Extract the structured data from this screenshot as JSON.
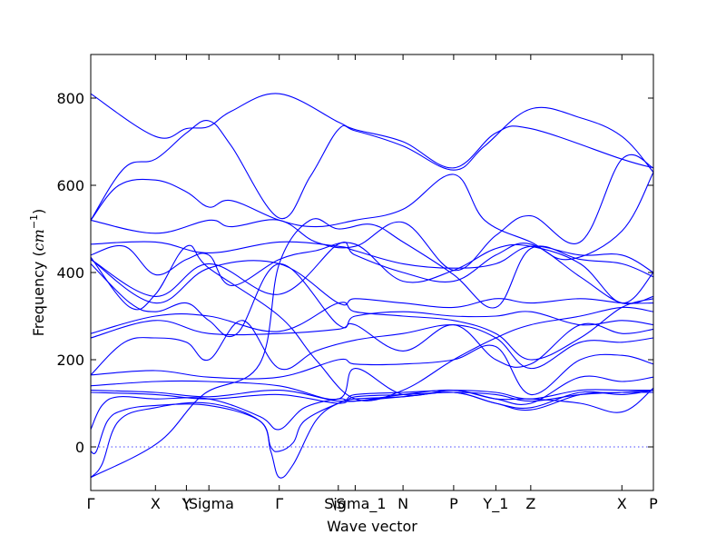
{
  "chart_data": {
    "type": "line",
    "title": "",
    "xlabel": "Wave vector",
    "ylabel_main": "Frequency (",
    "ylabel_math": "cm",
    "ylabel_exp": "−1",
    "ylabel_close": ")",
    "ylim": [
      -100,
      900
    ],
    "xlim": [
      0,
      1
    ],
    "grid": false,
    "y_ticks": [
      0,
      200,
      400,
      600,
      800
    ],
    "high_symmetry_points": [
      {
        "label": "Γ",
        "x": 0.0
      },
      {
        "label": "X",
        "x": 0.115
      },
      {
        "label": "Y",
        "x": 0.17
      },
      {
        "label": "\\Sigma",
        "x": 0.21
      },
      {
        "label": "Γ",
        "x": 0.335
      },
      {
        "label": "\\S",
        "x": 0.44
      },
      {
        "label": "Sigma_1",
        "x": 0.47
      },
      {
        "label": "N",
        "x": 0.555
      },
      {
        "label": "P",
        "x": 0.645
      },
      {
        "label": "Y_1",
        "x": 0.72
      },
      {
        "label": "Z",
        "x": 0.782
      },
      {
        "label": "X",
        "x": 0.944
      },
      {
        "label": "P",
        "x": 1.0
      }
    ],
    "series": [
      {
        "x": [
          0,
          0.115,
          0.17,
          0.21,
          0.25,
          0.335,
          0.44,
          0.47,
          0.555,
          0.645,
          0.72,
          0.782,
          0.944,
          1.0
        ],
        "values": [
          810,
          712,
          730,
          735,
          770,
          810,
          745,
          728,
          700,
          640,
          720,
          730,
          660,
          640
        ]
      },
      {
        "x": [
          0,
          0.06,
          0.115,
          0.17,
          0.21,
          0.25,
          0.335,
          0.39,
          0.44,
          0.47,
          0.555,
          0.645,
          0.7,
          0.782,
          0.87,
          0.944,
          1.0
        ],
        "values": [
          520,
          640,
          660,
          720,
          748,
          690,
          525,
          620,
          728,
          725,
          690,
          635,
          690,
          775,
          755,
          712,
          630
        ]
      },
      {
        "x": [
          0,
          0.05,
          0.115,
          0.17,
          0.21,
          0.25,
          0.335,
          0.4,
          0.47,
          0.555,
          0.645,
          0.7,
          0.782,
          0.85,
          0.944,
          1.0
        ],
        "values": [
          520,
          600,
          612,
          585,
          550,
          565,
          520,
          505,
          520,
          545,
          625,
          520,
          470,
          430,
          495,
          630
        ]
      },
      {
        "x": [
          0,
          0.115,
          0.21,
          0.25,
          0.335,
          0.4,
          0.47,
          0.555,
          0.645,
          0.72,
          0.782,
          0.87,
          0.944,
          1.0
        ],
        "values": [
          520,
          490,
          520,
          505,
          520,
          470,
          460,
          515,
          405,
          485,
          530,
          470,
          660,
          640
        ]
      },
      {
        "x": [
          0,
          0.115,
          0.21,
          0.335,
          0.44,
          0.47,
          0.555,
          0.645,
          0.72,
          0.782,
          0.87,
          0.944,
          1.0
        ],
        "values": [
          465,
          470,
          445,
          470,
          460,
          450,
          420,
          410,
          420,
          460,
          440,
          440,
          400
        ]
      },
      {
        "x": [
          0,
          0.06,
          0.115,
          0.17,
          0.21,
          0.25,
          0.335,
          0.4,
          0.47,
          0.555,
          0.645,
          0.72,
          0.782,
          0.87,
          0.944,
          1.0
        ],
        "values": [
          440,
          460,
          395,
          430,
          440,
          370,
          430,
          450,
          465,
          380,
          405,
          455,
          460,
          420,
          330,
          400
        ]
      },
      {
        "x": [
          0,
          0.115,
          0.21,
          0.335,
          0.44,
          0.47,
          0.555,
          0.645,
          0.72,
          0.782,
          0.87,
          0.944,
          1.0
        ],
        "values": [
          430,
          345,
          420,
          350,
          465,
          440,
          400,
          380,
          440,
          465,
          390,
          330,
          345
        ]
      },
      {
        "x": [
          0,
          0.115,
          0.21,
          0.335,
          0.44,
          0.47,
          0.555,
          0.645,
          0.72,
          0.782,
          0.87,
          0.944,
          1.0
        ],
        "values": [
          430,
          330,
          410,
          420,
          330,
          340,
          330,
          320,
          340,
          330,
          340,
          330,
          330
        ]
      },
      {
        "x": [
          0,
          0.07,
          0.115,
          0.17,
          0.21,
          0.26,
          0.335,
          0.44,
          0.47,
          0.555,
          0.645,
          0.72,
          0.782,
          0.87,
          0.944,
          1.0
        ],
        "values": [
          420,
          330,
          310,
          330,
          290,
          260,
          420,
          280,
          300,
          310,
          300,
          300,
          310,
          280,
          290,
          280
        ]
      },
      {
        "x": [
          0,
          0.115,
          0.21,
          0.335,
          0.44,
          0.47,
          0.555,
          0.645,
          0.72,
          0.782,
          0.87,
          0.944,
          1.0
        ],
        "values": [
          260,
          300,
          300,
          265,
          330,
          310,
          300,
          290,
          260,
          200,
          250,
          320,
          340
        ]
      },
      {
        "x": [
          0,
          0.115,
          0.21,
          0.335,
          0.44,
          0.47,
          0.555,
          0.645,
          0.72,
          0.782,
          0.87,
          0.944,
          1.0
        ],
        "values": [
          250,
          290,
          260,
          260,
          270,
          280,
          220,
          280,
          200,
          190,
          280,
          260,
          270
        ]
      },
      {
        "x": [
          0,
          0.06,
          0.115,
          0.17,
          0.21,
          0.27,
          0.335,
          0.4,
          0.47,
          0.555,
          0.645,
          0.72,
          0.782,
          0.87,
          0.944,
          1.0
        ],
        "values": [
          165,
          240,
          250,
          240,
          200,
          290,
          180,
          220,
          245,
          260,
          280,
          250,
          180,
          240,
          240,
          250
        ]
      },
      {
        "x": [
          0,
          0.115,
          0.21,
          0.335,
          0.44,
          0.47,
          0.555,
          0.645,
          0.72,
          0.782,
          0.87,
          0.944,
          1.0
        ],
        "values": [
          165,
          175,
          160,
          160,
          200,
          190,
          190,
          200,
          230,
          120,
          200,
          210,
          190
        ]
      },
      {
        "x": [
          0,
          0.115,
          0.21,
          0.335,
          0.44,
          0.47,
          0.555,
          0.645,
          0.72,
          0.782,
          0.87,
          0.944,
          1.0
        ],
        "values": [
          140,
          150,
          150,
          140,
          110,
          180,
          120,
          130,
          110,
          100,
          160,
          150,
          160
        ]
      },
      {
        "x": [
          0,
          0.115,
          0.21,
          0.335,
          0.44,
          0.47,
          0.555,
          0.645,
          0.72,
          0.782,
          0.87,
          0.944,
          1.0
        ],
        "values": [
          130,
          125,
          115,
          130,
          105,
          120,
          125,
          130,
          125,
          110,
          130,
          130,
          130
        ]
      },
      {
        "x": [
          0,
          0.115,
          0.21,
          0.335,
          0.44,
          0.47,
          0.555,
          0.645,
          0.72,
          0.782,
          0.87,
          0.944,
          1.0
        ],
        "values": [
          125,
          120,
          110,
          120,
          100,
          115,
          120,
          125,
          120,
          105,
          120,
          125,
          125
        ]
      },
      {
        "x": [
          0,
          0.02,
          0.05,
          0.115,
          0.21,
          0.3,
          0.335,
          0.38,
          0.44,
          0.47,
          0.555,
          0.645,
          0.72,
          0.782,
          0.87,
          0.944,
          1.0
        ],
        "values": [
          40,
          95,
          115,
          110,
          110,
          70,
          40,
          90,
          110,
          105,
          120,
          130,
          110,
          110,
          100,
          80,
          135
        ]
      },
      {
        "x": [
          0,
          0.02,
          0.05,
          0.115,
          0.21,
          0.3,
          0.32,
          0.335,
          0.36,
          0.4,
          0.44,
          0.47,
          0.555,
          0.645,
          0.72,
          0.782,
          0.87,
          0.944,
          1.0
        ],
        "values": [
          -70,
          -40,
          60,
          90,
          100,
          60,
          -10,
          -70,
          -40,
          60,
          100,
          105,
          115,
          125,
          100,
          90,
          125,
          120,
          130
        ]
      },
      {
        "x": [
          0,
          0.01,
          0.03,
          0.06,
          0.115,
          0.21,
          0.3,
          0.32,
          0.335,
          0.36,
          0.38,
          0.44,
          0.47,
          0.555,
          0.645,
          0.72,
          0.782,
          0.87,
          0.944,
          1.0
        ],
        "values": [
          -10,
          -10,
          60,
          85,
          95,
          95,
          60,
          0,
          -10,
          10,
          60,
          100,
          110,
          115,
          125,
          100,
          85,
          120,
          125,
          130
        ]
      },
      {
        "x": [
          0,
          0.12,
          0.2,
          0.3,
          0.335,
          0.39,
          0.44,
          0.5,
          0.555,
          0.645,
          0.72,
          0.782,
          0.87,
          0.944,
          1.0
        ],
        "values": [
          -70,
          10,
          120,
          190,
          420,
          520,
          500,
          510,
          470,
          395,
          320,
          455,
          430,
          420,
          390
        ]
      },
      {
        "x": [
          0,
          0.07,
          0.115,
          0.17,
          0.21,
          0.335,
          0.4,
          0.47,
          0.555,
          0.645,
          0.72,
          0.782,
          0.87,
          0.944,
          1.0
        ],
        "values": [
          435,
          320,
          350,
          460,
          410,
          300,
          200,
          110,
          130,
          200,
          250,
          280,
          300,
          320,
          310
        ]
      }
    ]
  }
}
